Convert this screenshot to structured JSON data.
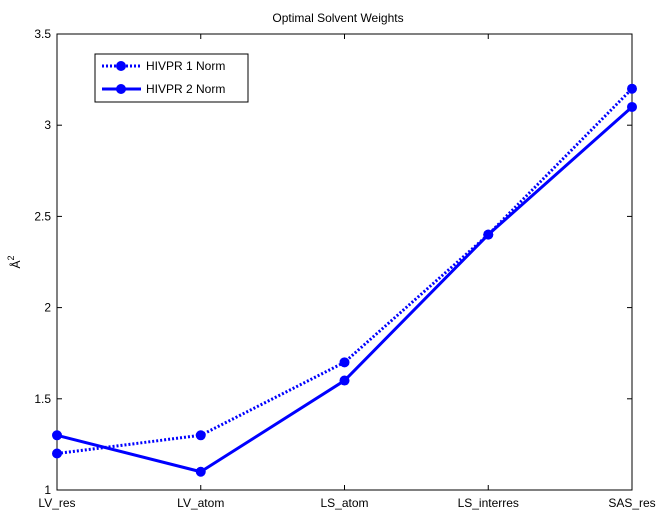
{
  "chart_data": {
    "type": "line",
    "title": "Optimal Solvent Weights",
    "xlabel": "",
    "ylabel": "Å",
    "ylabel_superscript": "2",
    "categories": [
      "LV_res",
      "LV_atom",
      "LS_atom",
      "LS_interres",
      "SAS_res"
    ],
    "ylim": [
      1,
      3.5
    ],
    "yticks": [
      "1",
      "1.5",
      "2",
      "2.5",
      "3",
      "3.5"
    ],
    "grid": false,
    "legend_position": "top-left",
    "series": [
      {
        "name": "HIVPR 1 Norm",
        "style": "dotted",
        "color": "#0000ff",
        "values": [
          1.2,
          1.3,
          1.7,
          2.4,
          3.2
        ]
      },
      {
        "name": "HIVPR 2 Norm",
        "style": "solid",
        "color": "#0000ff",
        "values": [
          1.3,
          1.1,
          1.6,
          2.4,
          3.1
        ]
      }
    ]
  }
}
